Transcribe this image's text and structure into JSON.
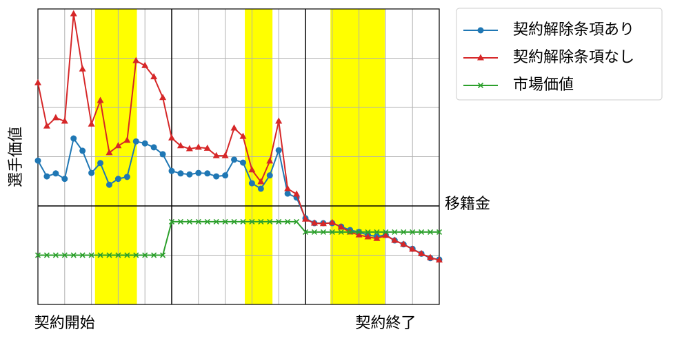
{
  "chart_data": {
    "type": "line",
    "ylabel": "選手価値",
    "x": [
      0,
      1,
      2,
      3,
      4,
      5,
      6,
      7,
      8,
      9,
      10,
      11,
      12,
      13,
      14,
      15,
      16,
      17,
      18,
      19,
      20,
      21,
      22,
      23,
      24,
      25,
      26,
      27,
      28,
      29,
      30,
      31,
      32,
      33,
      34,
      35,
      36,
      37,
      38,
      39,
      40,
      41,
      42,
      43,
      44,
      45
    ],
    "series": [
      {
        "name": "契約解除条項あり",
        "color": "#1f77b4",
        "marker": "circle",
        "values": [
          2.92,
          2.6,
          2.66,
          2.55,
          3.37,
          3.12,
          2.67,
          2.87,
          2.43,
          2.55,
          2.59,
          3.31,
          3.27,
          3.19,
          3.05,
          2.71,
          2.66,
          2.64,
          2.67,
          2.66,
          2.6,
          2.62,
          2.94,
          2.88,
          2.46,
          2.35,
          2.62,
          3.13,
          2.25,
          2.17,
          1.75,
          1.65,
          1.65,
          1.65,
          1.58,
          1.51,
          1.47,
          1.41,
          1.38,
          1.41,
          1.3,
          1.22,
          1.13,
          1.03,
          0.94,
          0.91
        ]
      },
      {
        "name": "契約解除条項なし",
        "color": "#d62728",
        "marker": "triangle",
        "values": [
          4.5,
          3.62,
          3.79,
          3.72,
          5.9,
          4.78,
          3.66,
          4.14,
          3.08,
          3.22,
          3.33,
          4.95,
          4.85,
          4.62,
          4.2,
          3.38,
          3.22,
          3.16,
          3.19,
          3.17,
          3.02,
          3.02,
          3.58,
          3.41,
          2.73,
          2.49,
          2.91,
          3.72,
          2.35,
          2.24,
          1.73,
          1.65,
          1.64,
          1.66,
          1.57,
          1.47,
          1.41,
          1.37,
          1.34,
          1.4,
          1.3,
          1.22,
          1.12,
          1.03,
          0.95,
          0.9
        ]
      },
      {
        "name": "市場価値",
        "color": "#2ca02c",
        "marker": "x",
        "values": [
          1,
          1,
          1,
          1,
          1,
          1,
          1,
          1,
          1,
          1,
          1,
          1,
          1,
          1,
          1,
          1.68,
          1.68,
          1.68,
          1.68,
          1.68,
          1.68,
          1.68,
          1.68,
          1.68,
          1.68,
          1.68,
          1.68,
          1.68,
          1.68,
          1.68,
          1.47,
          1.47,
          1.47,
          1.47,
          1.47,
          1.47,
          1.47,
          1.47,
          1.47,
          1.47,
          1.47,
          1.47,
          1.47,
          1.47,
          1.47,
          1.47
        ]
      }
    ],
    "xlim": [
      0,
      45
    ],
    "ylim": [
      0,
      6
    ],
    "xticks": [
      0,
      3,
      6,
      9,
      12,
      15,
      18,
      21,
      24,
      27,
      30,
      33,
      36,
      39,
      42,
      45
    ],
    "yticks": [
      0,
      1,
      2,
      3,
      4,
      5,
      6
    ],
    "grid": true,
    "vlines": [
      15,
      30
    ],
    "hline": {
      "value": 2,
      "label": "移籍金"
    },
    "x_labels": [
      {
        "value": 3,
        "label": "契約開始"
      },
      {
        "value": 39,
        "label": "契約終了"
      }
    ],
    "bands": [
      [
        6.4,
        11.1
      ],
      [
        23.2,
        26.3
      ],
      [
        32.8,
        38.9
      ]
    ],
    "band_color": "#ffff00",
    "legend": "outside-upper-right"
  }
}
